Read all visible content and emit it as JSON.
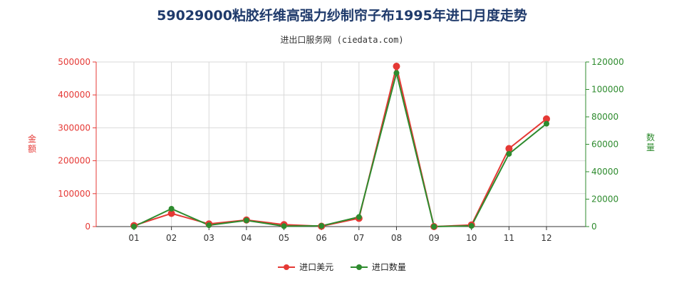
{
  "title": "59029000粘胶纤维高强力纱制帘子布1995年进口月度走势",
  "subtitle": "进出口服务网 (ciedata.com)",
  "chart_data": {
    "type": "line",
    "categories": [
      "01",
      "02",
      "03",
      "04",
      "05",
      "06",
      "07",
      "08",
      "09",
      "10",
      "11",
      "12"
    ],
    "series": [
      {
        "name": "进口美元",
        "axis": "left",
        "color": "#e53935",
        "values": [
          3000,
          40000,
          8000,
          20000,
          6000,
          1000,
          25000,
          487000,
          0,
          5000,
          237000,
          327000
        ]
      },
      {
        "name": "进口数量",
        "axis": "right",
        "color": "#2e8b2e",
        "values": [
          0,
          13000,
          1000,
          4500,
          300,
          500,
          7000,
          112000,
          0,
          500,
          53000,
          75000
        ]
      }
    ],
    "y_left": {
      "label": "金额",
      "ylim": [
        0,
        500000
      ],
      "ticks": [
        0,
        100000,
        200000,
        300000,
        400000,
        500000
      ],
      "tick_labels": [
        "0",
        "100000",
        "200000",
        "300000",
        "400000",
        "500000"
      ],
      "color": "#e53935"
    },
    "y_right": {
      "label": "数量",
      "ylim": [
        0,
        120000
      ],
      "ticks": [
        0,
        20000,
        40000,
        60000,
        80000,
        100000,
        120000
      ],
      "tick_labels": [
        "0",
        "20000",
        "40000",
        "60000",
        "80000",
        "100000",
        "120000"
      ],
      "color": "#2e8b2e"
    },
    "grid": true,
    "legend_position": "bottom-center"
  }
}
